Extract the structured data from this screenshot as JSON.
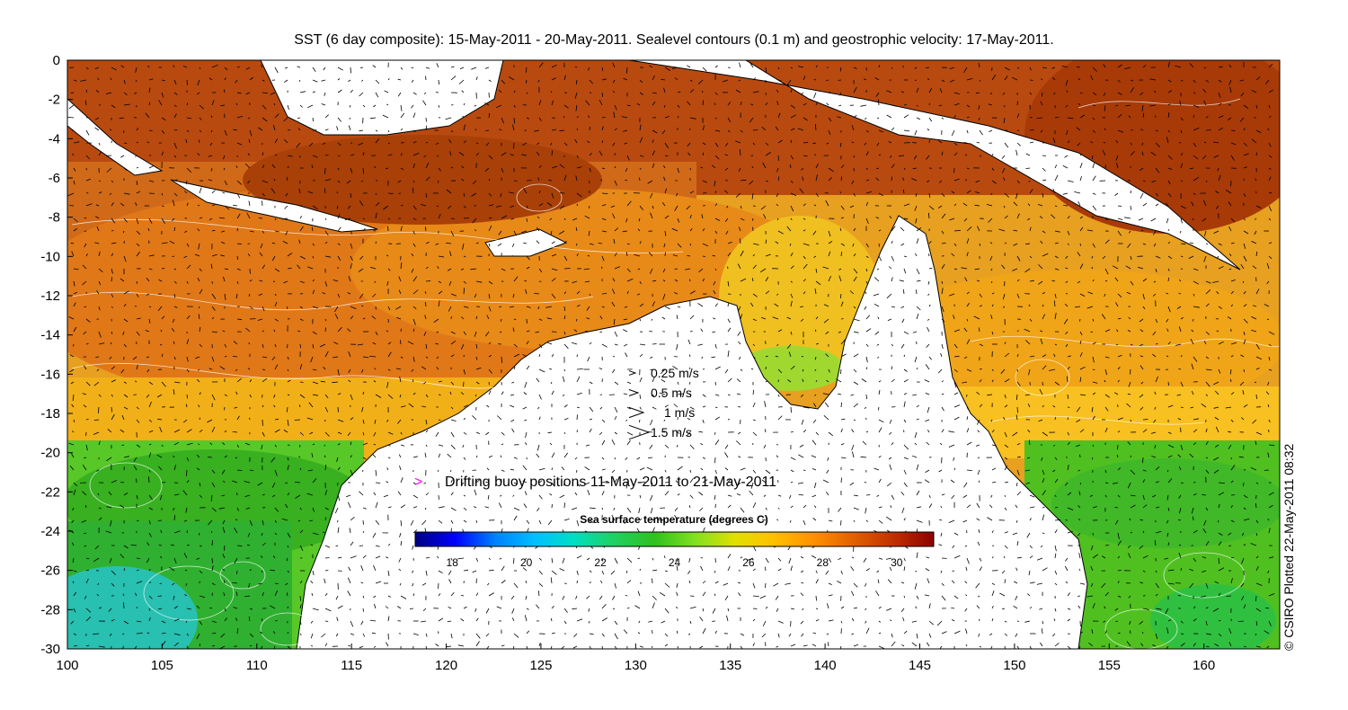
{
  "title": "SST (6 day composite): 15-May-2011 - 20-May-2011. Sealevel contours (0.1 m) and geostrophic velocity: 17-May-2011.",
  "credit": "© CSIRO Plotted 22-May-2011 08:32",
  "axes": {
    "x_ticks": [
      "100",
      "105",
      "110",
      "115",
      "120",
      "125",
      "130",
      "135",
      "140",
      "145",
      "150",
      "155",
      "160"
    ],
    "y_ticks": [
      "0",
      "-2",
      "-4",
      "-6",
      "-8",
      "-10",
      "-12",
      "-14",
      "-16",
      "-18",
      "-20",
      "-22",
      "-24",
      "-26",
      "-28",
      "-30"
    ],
    "xlim": [
      100,
      164
    ],
    "ylim": [
      -30,
      0
    ]
  },
  "velocity_legend": [
    {
      "label": "0.25 m/s",
      "scale": 0.25
    },
    {
      "label": "0.5 m/s",
      "scale": 0.5
    },
    {
      "label": "1 m/s",
      "scale": 1
    },
    {
      "label": "1.5 m/s",
      "scale": 1.5
    }
  ],
  "buoy_legend": {
    "symbol": ">",
    "label": "Drifting buoy positions 11-May-2011 to 21-May-2011",
    "color": "#ff00ff"
  },
  "colorbar": {
    "title": "Sea surface temperature (degrees C)",
    "range": [
      17,
      31
    ],
    "ticks": [
      "18",
      "20",
      "22",
      "24",
      "26",
      "28",
      "30"
    ],
    "colors": [
      "#00007f",
      "#0000ff",
      "#0080ff",
      "#00c0ff",
      "#00e0c0",
      "#20d060",
      "#30c020",
      "#80e020",
      "#e0e000",
      "#ffc000",
      "#ff9000",
      "#e06000",
      "#c03000",
      "#8b0000"
    ]
  },
  "colors": {
    "land": "#ffffff",
    "coast": "#000000",
    "contour": "#ffffff"
  }
}
